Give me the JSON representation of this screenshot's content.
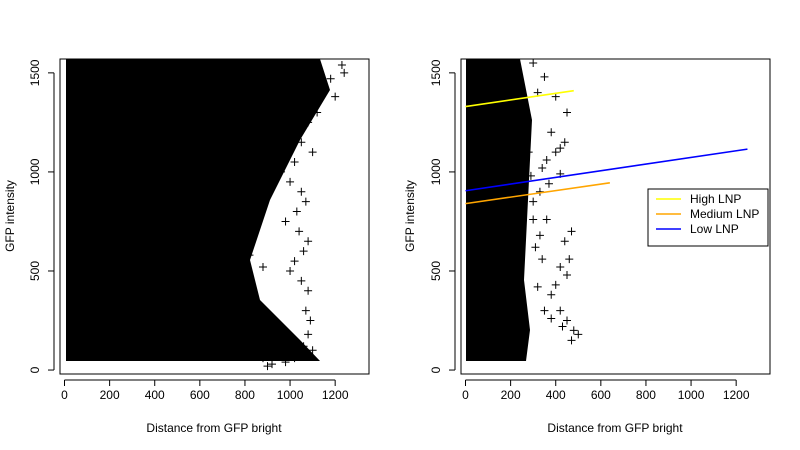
{
  "chart_data": [
    {
      "type": "scatter",
      "xlabel": "Distance from GFP bright",
      "ylabel": "GFP intensity",
      "xlim": [
        -20,
        1350
      ],
      "ylim": [
        -20,
        1570
      ],
      "xticks": [
        0,
        200,
        400,
        600,
        800,
        1000,
        1200
      ],
      "yticks": [
        0,
        500,
        1000,
        1500
      ],
      "marker": "+",
      "point_color": "#000000",
      "series": [
        {
          "points": [
            [
              1230,
              1540
            ],
            [
              1240,
              1500
            ],
            [
              1180,
              1470
            ],
            [
              1150,
              1400
            ],
            [
              1200,
              1380
            ],
            [
              1100,
              1450
            ],
            [
              1050,
              1350
            ],
            [
              1120,
              1300
            ],
            [
              1080,
              1250
            ],
            [
              1000,
              1200
            ],
            [
              1050,
              1150
            ],
            [
              1100,
              1100
            ],
            [
              1020,
              1050
            ],
            [
              960,
              1000
            ],
            [
              1000,
              950
            ],
            [
              1050,
              900
            ],
            [
              1070,
              850
            ],
            [
              1030,
              800
            ],
            [
              980,
              750
            ],
            [
              1040,
              700
            ],
            [
              1080,
              650
            ],
            [
              1060,
              600
            ],
            [
              1020,
              550
            ],
            [
              1000,
              500
            ],
            [
              1050,
              450
            ],
            [
              1080,
              400
            ],
            [
              1070,
              300
            ],
            [
              1090,
              250
            ],
            [
              1080,
              180
            ],
            [
              1060,
              120
            ],
            [
              1100,
              100
            ],
            [
              1020,
              60
            ],
            [
              980,
              40
            ],
            [
              950,
              90
            ],
            [
              920,
              30
            ],
            [
              900,
              20
            ],
            [
              880,
              60
            ],
            [
              850,
              120
            ],
            [
              820,
              160
            ],
            [
              800,
              200
            ],
            [
              760,
              260
            ],
            [
              730,
              300
            ],
            [
              700,
              350
            ],
            [
              680,
              390
            ],
            [
              650,
              430
            ],
            [
              620,
              480
            ],
            [
              600,
              520
            ],
            [
              570,
              560
            ],
            [
              540,
              600
            ],
            [
              520,
              640
            ],
            [
              490,
              690
            ],
            [
              460,
              730
            ],
            [
              430,
              780
            ],
            [
              400,
              820
            ],
            [
              380,
              860
            ],
            [
              500,
              1040
            ],
            [
              540,
              1080
            ],
            [
              580,
              1130
            ],
            [
              620,
              1180
            ],
            [
              660,
              1230
            ],
            [
              700,
              1280
            ],
            [
              740,
              1330
            ],
            [
              780,
              1380
            ],
            [
              820,
              1430
            ],
            [
              860,
              1480
            ],
            [
              900,
              1520
            ],
            [
              940,
              1550
            ],
            [
              700,
              700
            ],
            [
              760,
              640
            ],
            [
              820,
              580
            ],
            [
              880,
              520
            ],
            [
              740,
              900
            ],
            [
              800,
              1000
            ],
            [
              860,
              1100
            ],
            [
              920,
              1200
            ],
            [
              640,
              820
            ],
            [
              700,
              1050
            ],
            [
              760,
              1150
            ],
            [
              600,
              300
            ],
            [
              650,
              200
            ],
            [
              700,
              150
            ],
            [
              750,
              100
            ],
            [
              560,
              150
            ],
            [
              520,
              220
            ],
            [
              480,
              300
            ]
          ]
        }
      ]
    },
    {
      "type": "scatter",
      "xlabel": "Distance from GFP bright",
      "ylabel": "GFP intensity",
      "xlim": [
        -20,
        1350
      ],
      "ylim": [
        -20,
        1570
      ],
      "xticks": [
        0,
        200,
        400,
        600,
        800,
        1000,
        1200
      ],
      "yticks": [
        0,
        500,
        1000,
        1500
      ],
      "marker": "+",
      "point_color": "#000000",
      "series": [
        {
          "points": [
            [
              400,
              1100
            ],
            [
              420,
              1120
            ],
            [
              380,
              1200
            ],
            [
              440,
              1150
            ],
            [
              360,
              1060
            ],
            [
              340,
              1020
            ],
            [
              420,
              990
            ],
            [
              370,
              940
            ],
            [
              330,
              900
            ],
            [
              300,
              850
            ],
            [
              450,
              1300
            ],
            [
              400,
              1380
            ],
            [
              350,
              1480
            ],
            [
              300,
              1550
            ],
            [
              320,
              1400
            ],
            [
              470,
              700
            ],
            [
              440,
              650
            ],
            [
              460,
              560
            ],
            [
              420,
              520
            ],
            [
              450,
              480
            ],
            [
              400,
              430
            ],
            [
              380,
              380
            ],
            [
              420,
              300
            ],
            [
              450,
              250
            ],
            [
              480,
              200
            ],
            [
              500,
              180
            ],
            [
              470,
              150
            ],
            [
              430,
              220
            ],
            [
              380,
              260
            ],
            [
              350,
              300
            ],
            [
              320,
              420
            ],
            [
              340,
              560
            ],
            [
              330,
              680
            ],
            [
              300,
              760
            ],
            [
              310,
              620
            ],
            [
              360,
              760
            ],
            [
              290,
              980
            ],
            [
              280,
              1100
            ],
            [
              260,
              1260
            ],
            [
              250,
              1350
            ]
          ]
        }
      ],
      "lines": [
        {
          "name": "High LNP",
          "color": "#ffff00",
          "x": [
            0,
            480
          ],
          "y": [
            1330,
            1410
          ]
        },
        {
          "name": "Medium LNP",
          "color": "#ffa500",
          "x": [
            0,
            640
          ],
          "y": [
            840,
            945
          ]
        },
        {
          "name": "Low LNP",
          "color": "#0000ff",
          "x": [
            0,
            1250
          ],
          "y": [
            905,
            1115
          ]
        }
      ],
      "legend": {
        "placement": "right",
        "entries": [
          {
            "label": "High LNP",
            "color": "#ffff00"
          },
          {
            "label": "Medium LNP",
            "color": "#ffa500"
          },
          {
            "label": "Low LNP",
            "color": "#0000ff"
          }
        ]
      }
    }
  ]
}
